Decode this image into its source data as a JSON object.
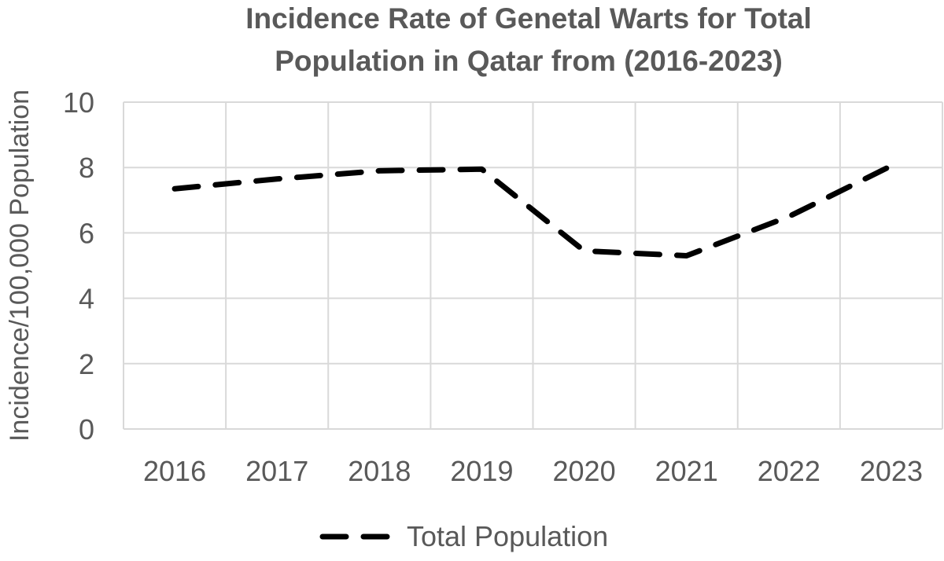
{
  "chart_data": {
    "type": "line",
    "title_lines": [
      "Incidence Rate of Genetal Warts for Total",
      "Population in Qatar from (2016-2023)"
    ],
    "xlabel": "",
    "ylabel": "Incidence/100,000 Population",
    "categories": [
      "2016",
      "2017",
      "2018",
      "2019",
      "2020",
      "2021",
      "2022",
      "2023"
    ],
    "ylim": [
      0,
      10
    ],
    "yticks": [
      "0",
      "2",
      "4",
      "6",
      "8",
      "10"
    ],
    "grid": true,
    "legend_position": "bottom",
    "series": [
      {
        "name": "Total Population",
        "values": [
          7.35,
          7.65,
          7.9,
          7.95,
          5.45,
          5.3,
          6.5,
          8.05
        ],
        "color": "#000000",
        "style": "dashed"
      }
    ]
  }
}
